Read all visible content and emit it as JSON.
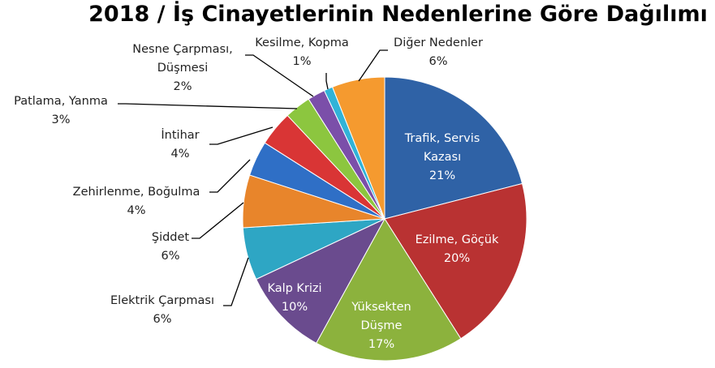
{
  "chart_data": {
    "type": "pie",
    "title": "2018 / İş Cinayetlerinin Nedenlerine Göre Dağılımı",
    "categories": [
      "Trafik, Servis Kazası",
      "Ezilme, Göçük",
      "Yüksekten Düşme",
      "Kalp Krizi",
      "Elektrik Çarpması",
      "Şiddet",
      "Zehirlenme, Boğulma",
      "İntihar",
      "Patlama, Yanma",
      "Nesne Çarpması, Düşmesi",
      "Kesilme, Kopma",
      "Diğer Nedenler"
    ],
    "values": [
      21,
      20,
      17,
      10,
      6,
      6,
      4,
      4,
      3,
      2,
      1,
      6
    ],
    "value_labels": [
      "21%",
      "20%",
      "17%",
      "10%",
      "6%",
      "6%",
      "4%",
      "4%",
      "3%",
      "2%",
      "1%",
      "6%"
    ],
    "colors": [
      "#2f62a6",
      "#b93232",
      "#8cb23d",
      "#6a4b8e",
      "#2ea6c4",
      "#e8852b",
      "#2f6fc6",
      "#d93535",
      "#8cc63f",
      "#7b4fa9",
      "#31b3d8",
      "#f59a2f"
    ]
  }
}
